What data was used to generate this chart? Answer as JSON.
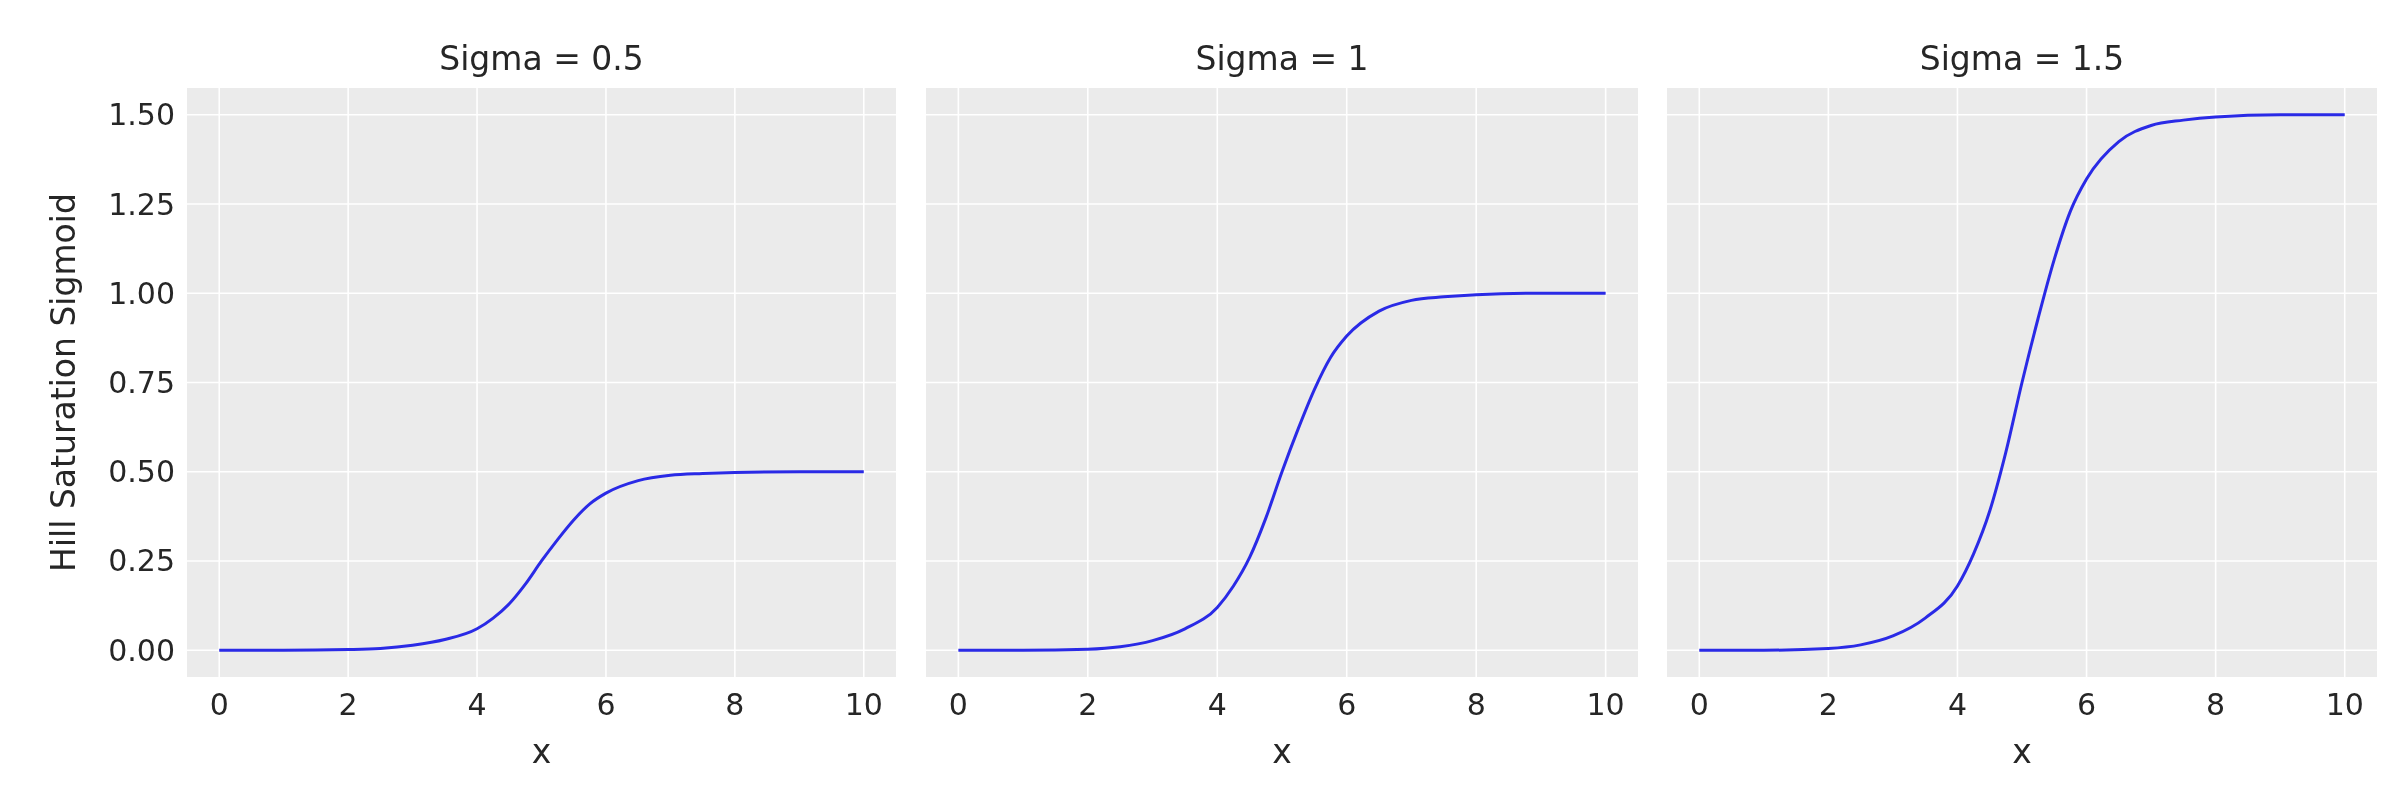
{
  "chart_data": [
    {
      "type": "line",
      "title": "Sigma = 0.5",
      "xlabel": "x",
      "ylabel": "Hill Saturation Sigmoid",
      "xlim": [
        -0.5,
        10.5
      ],
      "ylim": [
        -0.075,
        1.575
      ],
      "xticks": [
        0,
        2,
        4,
        6,
        8,
        10
      ],
      "yticks": [
        {
          "value": 0,
          "label": "0.00"
        },
        {
          "value": 0.25,
          "label": "0.25"
        },
        {
          "value": 0.5,
          "label": "0.50"
        },
        {
          "value": 0.75,
          "label": "0.75"
        },
        {
          "value": 1,
          "label": "1.00"
        },
        {
          "value": 1.25,
          "label": "1.25"
        },
        {
          "value": 1.5,
          "label": "1.50"
        }
      ],
      "grid": true,
      "x": [
        0,
        1,
        2,
        2.5,
        3,
        3.5,
        4,
        4.25,
        4.5,
        4.75,
        5,
        5.25,
        5.5,
        5.75,
        6,
        6.5,
        7,
        7.5,
        8,
        9,
        10
      ],
      "series": [
        {
          "color": "#2a2ae6",
          "values": [
            0,
            0,
            0.002,
            0.005,
            0.014,
            0.03,
            0.06,
            0.09,
            0.13,
            0.185,
            0.25,
            0.31,
            0.365,
            0.41,
            0.44,
            0.475,
            0.49,
            0.495,
            0.498,
            0.5,
            0.5
          ]
        }
      ]
    },
    {
      "type": "line",
      "title": "Sigma = 1",
      "xlabel": "x",
      "xlim": [
        -0.5,
        10.5
      ],
      "ylim": [
        -0.075,
        1.575
      ],
      "xticks": [
        0,
        2,
        4,
        6,
        8,
        10
      ],
      "yticks": [
        {
          "value": 0,
          "label": null
        },
        {
          "value": 0.25,
          "label": null
        },
        {
          "value": 0.5,
          "label": null
        },
        {
          "value": 0.75,
          "label": null
        },
        {
          "value": 1,
          "label": null
        },
        {
          "value": 1.25,
          "label": null
        },
        {
          "value": 1.5,
          "label": null
        }
      ],
      "grid": true,
      "tick_labels": "x",
      "x": [
        0,
        1,
        2,
        2.5,
        3,
        3.5,
        4,
        4.25,
        4.5,
        4.75,
        5,
        5.25,
        5.5,
        5.75,
        6,
        6.5,
        7,
        7.5,
        8,
        9,
        10
      ],
      "series": [
        {
          "color": "#2a2ae6",
          "values": [
            0,
            0,
            0.003,
            0.01,
            0.027,
            0.06,
            0.12,
            0.18,
            0.26,
            0.37,
            0.5,
            0.62,
            0.73,
            0.82,
            0.88,
            0.95,
            0.98,
            0.99,
            0.996,
            1,
            1
          ]
        }
      ]
    },
    {
      "type": "line",
      "title": "Sigma = 1.5",
      "xlabel": "x",
      "xlim": [
        -0.5,
        10.5
      ],
      "ylim": [
        -0.075,
        1.575
      ],
      "xticks": [
        0,
        2,
        4,
        6,
        8,
        10
      ],
      "yticks": [
        {
          "value": 0,
          "label": null
        },
        {
          "value": 0.25,
          "label": null
        },
        {
          "value": 0.5,
          "label": null
        },
        {
          "value": 0.75,
          "label": null
        },
        {
          "value": 1,
          "label": null
        },
        {
          "value": 1.25,
          "label": null
        },
        {
          "value": 1.5,
          "label": null
        }
      ],
      "grid": true,
      "tick_labels": "x",
      "x": [
        0,
        1,
        2,
        2.5,
        3,
        3.5,
        4,
        4.25,
        4.5,
        4.75,
        5,
        5.25,
        5.5,
        5.75,
        6,
        6.5,
        7,
        7.5,
        8,
        9,
        10
      ],
      "series": [
        {
          "color": "#2a2ae6",
          "values": [
            0,
            0,
            0.005,
            0.015,
            0.04,
            0.09,
            0.18,
            0.27,
            0.39,
            0.555,
            0.75,
            0.93,
            1.095,
            1.23,
            1.32,
            1.425,
            1.47,
            1.485,
            1.494,
            1.5,
            1.5
          ]
        }
      ]
    }
  ]
}
